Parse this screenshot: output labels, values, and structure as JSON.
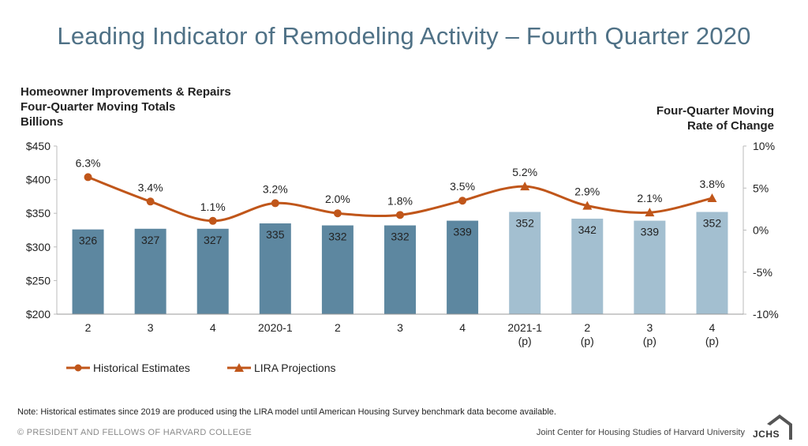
{
  "title": "Leading Indicator of Remodeling Activity – Fourth Quarter 2020",
  "left_axis_title": [
    "Homeowner Improvements & Repairs",
    "Four-Quarter Moving Totals",
    "Billions"
  ],
  "right_axis_title": [
    "Four-Quarter Moving",
    "Rate of Change"
  ],
  "note": "Note: Historical estimates since 2019 are produced using the LIRA model until American Housing Survey benchmark data become available.",
  "copyright": "© PRESIDENT AND FELLOWS OF HARVARD COLLEGE",
  "institution": "Joint Center for Housing Studies of Harvard University",
  "logo_text": "JCHS",
  "colors": {
    "title": "#4f7186",
    "bar_historical": "#5d87a0",
    "bar_projected": "#a3bfd0",
    "line": "#c0561a",
    "grid": "#d0d0d0"
  },
  "chart_data": {
    "type": "bar",
    "categories": [
      [
        "2"
      ],
      [
        "3"
      ],
      [
        "4"
      ],
      [
        "2020-1"
      ],
      [
        "2"
      ],
      [
        "3"
      ],
      [
        "4"
      ],
      [
        "2021-1",
        "(p)"
      ],
      [
        "2",
        "(p)"
      ],
      [
        "3",
        "(p)"
      ],
      [
        "4",
        "(p)"
      ]
    ],
    "bars": {
      "values": [
        326,
        327,
        327,
        335,
        332,
        332,
        339,
        352,
        342,
        339,
        352
      ],
      "labels": [
        "326",
        "327",
        "327",
        "335",
        "332",
        "332",
        "339",
        "352",
        "342",
        "339",
        "352"
      ],
      "projected": [
        false,
        false,
        false,
        false,
        false,
        false,
        false,
        true,
        true,
        true,
        true
      ],
      "ylim": [
        200,
        450
      ],
      "yticks": [
        200,
        250,
        300,
        350,
        400,
        450
      ],
      "ytick_labels": [
        "$200",
        "$250",
        "$300",
        "$350",
        "$400",
        "$450"
      ]
    },
    "series": [
      {
        "name": "Historical Estimates",
        "axis": "right",
        "marker": "circle",
        "values": [
          6.3,
          3.4,
          1.1,
          3.2,
          2.0,
          1.8,
          3.5,
          null,
          null,
          null,
          null
        ],
        "labels": [
          "6.3%",
          "3.4%",
          "1.1%",
          "3.2%",
          "2.0%",
          "1.8%",
          "3.5%",
          null,
          null,
          null,
          null
        ]
      },
      {
        "name": "LIRA Projections",
        "axis": "right",
        "marker": "triangle",
        "values": [
          null,
          null,
          null,
          null,
          null,
          null,
          3.5,
          5.2,
          2.9,
          2.1,
          3.8
        ],
        "labels": [
          null,
          null,
          null,
          null,
          null,
          null,
          null,
          "5.2%",
          "2.9%",
          "2.1%",
          "3.8%"
        ]
      }
    ],
    "right_axis": {
      "ylim": [
        -10,
        10
      ],
      "yticks": [
        -10,
        -5,
        0,
        5,
        10
      ],
      "ytick_labels": [
        "-10%",
        "-5%",
        "0%",
        "5%",
        "10%"
      ]
    },
    "legend": {
      "placement": "bottom-left",
      "entries": [
        "Historical Estimates",
        "LIRA Projections"
      ]
    }
  }
}
